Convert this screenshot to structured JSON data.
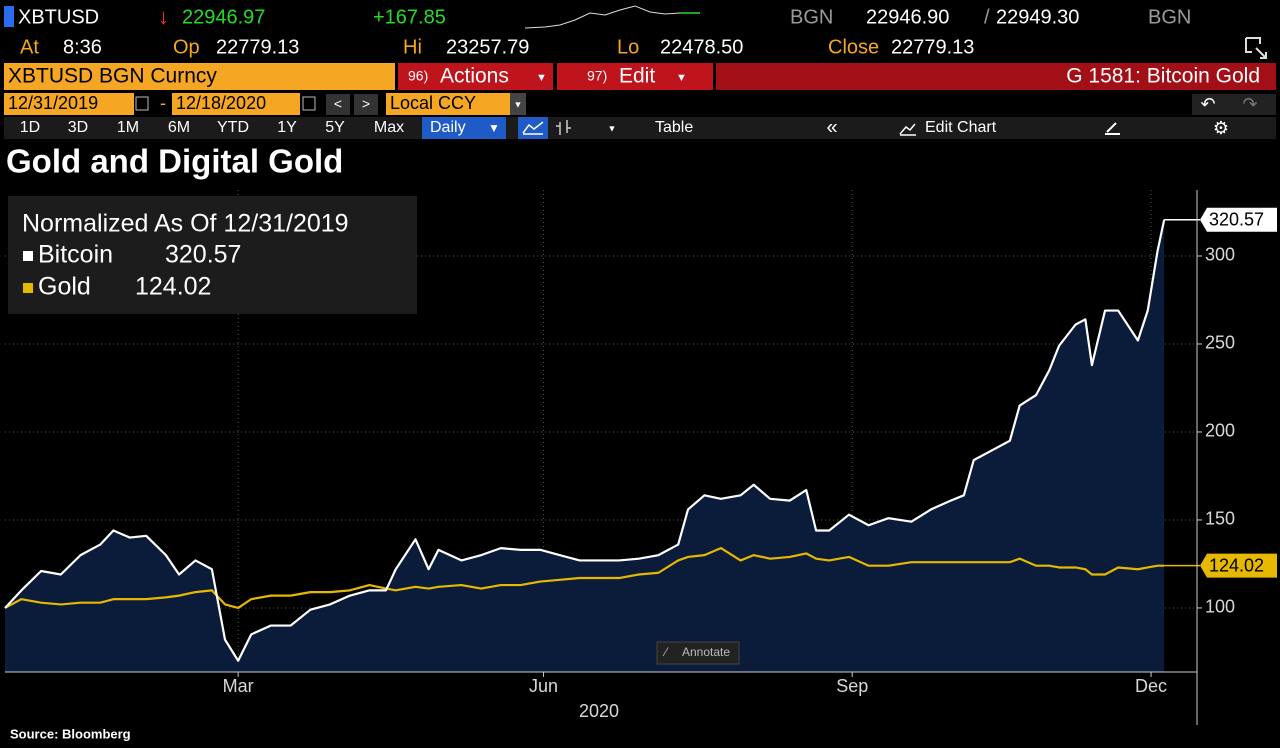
{
  "header": {
    "ticker": "XBTUSD",
    "direction": "↓",
    "last": "22946.97",
    "change": "+167.85",
    "source": "BGN",
    "bid": "22946.90",
    "separator": "/",
    "ask": "22949.30",
    "source_right": "BGN",
    "at_label": "At",
    "at": "8:36",
    "open_label": "Op",
    "open": "22779.13",
    "high_label": "Hi",
    "high": "23257.79",
    "low_label": "Lo",
    "low": "22478.50",
    "close_label": "Close",
    "close": "22779.13"
  },
  "toolbar": {
    "security": "XBTUSD BGN Curncy",
    "actions_number": "96)",
    "actions": "Actions",
    "edit_number": "97)",
    "edit": "Edit",
    "function": "G 1581: Bitcoin Gold",
    "start_date": "12/31/2019",
    "date_separator": "-",
    "end_date": "12/18/2020",
    "currency": "Local CCY",
    "periods": [
      "1D",
      "3D",
      "1M",
      "6M",
      "YTD",
      "1Y",
      "5Y",
      "Max"
    ],
    "frequency": "Daily",
    "table": "Table",
    "edit_chart": "Edit Chart"
  },
  "chart_data": {
    "type": "line",
    "title": "Gold and Digital Gold",
    "legend_title": "Normalized As Of 12/31/2019",
    "x_label": "2020",
    "x": [
      0,
      5,
      11,
      17,
      23,
      29,
      33,
      38,
      43,
      49,
      53,
      58,
      63,
      67,
      71,
      75,
      81,
      87,
      93,
      99,
      105,
      111,
      116,
      119,
      125,
      129,
      132,
      139,
      145,
      151,
      157,
      163,
      169,
      175,
      181,
      187,
      193,
      199,
      205,
      208,
      213,
      218,
      224,
      228,
      233,
      239,
      244,
      247,
      251,
      257,
      263,
      269,
      276,
      282,
      288,
      292,
      295,
      301,
      306,
      309,
      314,
      318,
      321,
      326,
      329,
      331,
      335,
      339,
      345,
      348,
      351,
      353
    ],
    "xlim": [
      0,
      363
    ],
    "xticks": [
      {
        "value": 71,
        "label": "Mar"
      },
      {
        "value": 164,
        "label": "Jun"
      },
      {
        "value": 258,
        "label": "Sep"
      },
      {
        "value": 349,
        "label": "Dec"
      }
    ],
    "ylim": [
      63.6,
      337.5
    ],
    "yticks": [
      100,
      150,
      200,
      250,
      300
    ],
    "grid": true,
    "series": [
      {
        "name": "Bitcoin",
        "color": "#ffffff",
        "fill": "#0b1c3a",
        "values": [
          100,
          110,
          121,
          119,
          130,
          136,
          144,
          140,
          141,
          130,
          119,
          127,
          122,
          82,
          70,
          85,
          90,
          90,
          99,
          102,
          107,
          110,
          110,
          122,
          139,
          122,
          133,
          127,
          130,
          134,
          133,
          133,
          130,
          127,
          127,
          127,
          128,
          130,
          136,
          156,
          164,
          162,
          164,
          170,
          162,
          161,
          167,
          144,
          144,
          153,
          147,
          151,
          149,
          156,
          161,
          164,
          184,
          190,
          195,
          215,
          221,
          235,
          249,
          261,
          264,
          238,
          269,
          269,
          252,
          269,
          303,
          320.57
        ]
      },
      {
        "name": "Gold",
        "color": "#e6b800",
        "values": [
          100,
          105,
          103,
          102,
          103,
          103,
          105,
          105,
          105,
          106,
          107,
          109,
          110,
          102,
          100,
          105,
          107,
          107,
          109,
          109,
          110,
          113,
          111,
          110,
          112,
          111,
          112,
          113,
          111,
          113,
          113,
          115,
          116,
          117,
          117,
          117,
          119,
          120,
          127,
          129,
          130,
          134,
          127,
          130,
          128,
          129,
          131,
          128,
          127,
          129,
          124,
          124,
          126,
          126,
          126,
          126,
          126,
          126,
          126,
          128,
          124,
          124,
          123,
          123,
          122,
          119,
          119,
          123,
          122,
          123,
          124,
          124.02
        ]
      }
    ]
  },
  "footer": {
    "annotate": "Annotate",
    "source": "Source: Bloomberg"
  }
}
